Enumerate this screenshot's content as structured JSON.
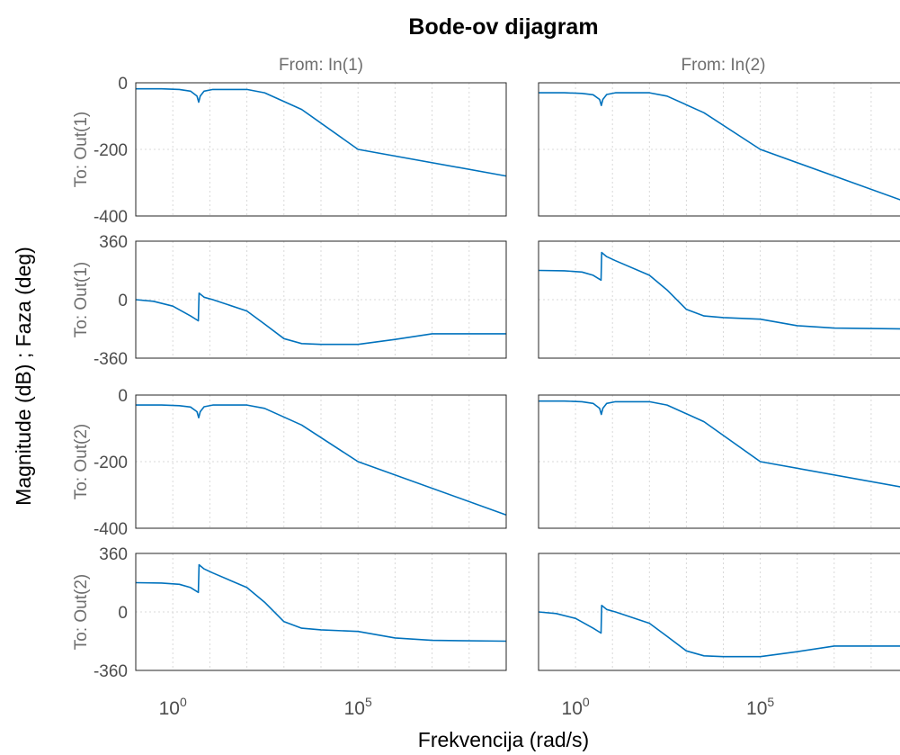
{
  "chart_data": {
    "type": "line",
    "title": "Bode-ov dijagram",
    "xlabel": "Frekvencija  (rad/s)",
    "ylabel": "Magnitude (dB) ; Faza (deg)",
    "x_scale": "log",
    "x_range": [
      0.1,
      1000000000
    ],
    "x_ticks": [
      {
        "base": "10",
        "exp": "0",
        "value": 1
      },
      {
        "base": "10",
        "exp": "5",
        "value": 100000
      }
    ],
    "grid": true,
    "line_color": "#0072BD",
    "columns": [
      "From: In(1)",
      "From: In(2)"
    ],
    "rows": [
      {
        "label": "To: Out(1)",
        "kind": "magnitude",
        "ylim": [
          -400,
          0
        ],
        "yticks": [
          "0",
          "-200",
          "-400"
        ],
        "ytick_values": [
          0,
          -200,
          -400
        ]
      },
      {
        "label": "To: Out(1)",
        "kind": "phase",
        "ylim": [
          -360,
          360
        ],
        "yticks": [
          "360",
          "0",
          "-360"
        ],
        "ytick_values": [
          360,
          0,
          -360
        ]
      },
      {
        "label": "To: Out(2)",
        "kind": "magnitude",
        "ylim": [
          -400,
          0
        ],
        "yticks": [
          "0",
          "-200",
          "-400"
        ],
        "ytick_values": [
          0,
          -200,
          -400
        ]
      },
      {
        "label": "To: Out(2)",
        "kind": "phase",
        "ylim": [
          -360,
          360
        ],
        "yticks": [
          "360",
          "0",
          "-360"
        ],
        "ytick_values": [
          360,
          0,
          -360
        ]
      }
    ],
    "series": [
      {
        "row": 0,
        "col": 0,
        "x": [
          0.1,
          0.5,
          1.5,
          3,
          4.5,
          5,
          5.5,
          7,
          12,
          100,
          300,
          3000,
          100000,
          1000000000
        ],
        "y": [
          -18,
          -18,
          -20,
          -25,
          -40,
          -58,
          -40,
          -25,
          -20,
          -20,
          -30,
          -80,
          -200,
          -280
        ]
      },
      {
        "row": 0,
        "col": 1,
        "x": [
          0.1,
          0.5,
          1.5,
          3,
          4.5,
          5,
          5.5,
          7,
          12,
          100,
          300,
          3000,
          100000,
          1000000000
        ],
        "y": [
          -30,
          -30,
          -32,
          -36,
          -50,
          -68,
          -50,
          -35,
          -30,
          -30,
          -40,
          -90,
          -200,
          -360
        ]
      },
      {
        "row": 1,
        "col": 0,
        "x": [
          0.1,
          0.3,
          1,
          3,
          4.9,
          5.1,
          7,
          12,
          100,
          300,
          1000,
          3000,
          10000,
          100000,
          1000000,
          10000000,
          1000000000
        ],
        "y": [
          0,
          -10,
          -40,
          -100,
          -130,
          40,
          15,
          0,
          -70,
          -150,
          -240,
          -270,
          -275,
          -275,
          -245,
          -210,
          -210
        ]
      },
      {
        "row": 1,
        "col": 1,
        "x": [
          0.1,
          0.5,
          1.5,
          3,
          4.9,
          5.1,
          7,
          12,
          100,
          300,
          1000,
          3000,
          10000,
          100000,
          1000000,
          10000000,
          1000000000
        ],
        "y": [
          180,
          178,
          170,
          150,
          120,
          290,
          265,
          240,
          150,
          60,
          -60,
          -100,
          -110,
          -120,
          -160,
          -175,
          -180
        ]
      },
      {
        "row": 2,
        "col": 0,
        "x": [
          0.1,
          0.5,
          1.5,
          3,
          4.5,
          5,
          5.5,
          7,
          12,
          100,
          300,
          3000,
          100000,
          1000000000
        ],
        "y": [
          -30,
          -30,
          -32,
          -36,
          -50,
          -68,
          -50,
          -35,
          -30,
          -30,
          -40,
          -90,
          -200,
          -360
        ]
      },
      {
        "row": 2,
        "col": 1,
        "x": [
          0.1,
          0.5,
          1.5,
          3,
          4.5,
          5,
          5.5,
          7,
          12,
          100,
          300,
          3000,
          100000,
          1000000000
        ],
        "y": [
          -18,
          -18,
          -20,
          -25,
          -40,
          -58,
          -40,
          -25,
          -20,
          -20,
          -30,
          -80,
          -200,
          -280
        ]
      },
      {
        "row": 3,
        "col": 0,
        "x": [
          0.1,
          0.5,
          1.5,
          3,
          4.9,
          5.1,
          7,
          12,
          100,
          300,
          1000,
          3000,
          10000,
          100000,
          1000000,
          10000000,
          1000000000
        ],
        "y": [
          180,
          178,
          170,
          150,
          120,
          290,
          265,
          240,
          150,
          60,
          -60,
          -100,
          -110,
          -120,
          -160,
          -175,
          -180
        ]
      },
      {
        "row": 3,
        "col": 1,
        "x": [
          0.1,
          0.3,
          1,
          3,
          4.9,
          5.1,
          7,
          12,
          100,
          300,
          1000,
          3000,
          10000,
          100000,
          1000000,
          10000000,
          1000000000
        ],
        "y": [
          0,
          -10,
          -40,
          -100,
          -130,
          40,
          15,
          0,
          -70,
          -150,
          -240,
          -270,
          -275,
          -275,
          -245,
          -210,
          -210
        ]
      }
    ]
  }
}
